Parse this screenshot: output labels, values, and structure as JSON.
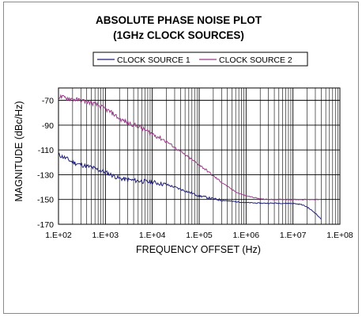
{
  "chart_data": {
    "type": "line",
    "title": "ABSOLUTE PHASE NOISE PLOT",
    "subtitle": "(1GHz CLOCK SOURCES)",
    "xlabel": "FREQUENCY OFFSET (Hz)",
    "ylabel": "MAGNITUDE (dBc/Hz)",
    "x_scale": "log",
    "xlim": [
      100,
      100000000
    ],
    "ylim": [
      -170,
      -60
    ],
    "x_ticks": [
      "1.E+02",
      "1.E+03",
      "1.E+04",
      "1.E+05",
      "1.E+06",
      "1.E+07",
      "1.E+08"
    ],
    "y_ticks": [
      "-70",
      "-90",
      "-110",
      "-130",
      "-150",
      "-170"
    ],
    "y_tick_values": [
      -70,
      -90,
      -110,
      -130,
      -150,
      -170
    ],
    "grid": true,
    "legend_position": "top",
    "series": [
      {
        "name": "CLOCK SOURCE 1",
        "color": "#1f1f7a",
        "x": [
          100,
          150,
          200,
          300,
          500,
          700,
          1000,
          1500,
          2000,
          3000,
          5000,
          7000,
          10000,
          20000,
          30000,
          50000,
          100000,
          200000,
          300000,
          500000,
          1000000,
          2000000,
          3000000,
          5000000,
          10000000,
          15000000,
          20000000,
          30000000,
          40000000
        ],
        "y": [
          -114,
          -117,
          -120,
          -122,
          -124,
          -126,
          -128,
          -131,
          -133,
          -134,
          -135,
          -135.5,
          -136,
          -138,
          -140,
          -143,
          -147,
          -149.5,
          -150.5,
          -151.5,
          -152.5,
          -153,
          -153,
          -153,
          -153.2,
          -154,
          -156,
          -161,
          -166
        ]
      },
      {
        "name": "CLOCK SOURCE 2",
        "color": "#9b3a8a",
        "x": [
          100,
          150,
          200,
          300,
          500,
          700,
          1000,
          1500,
          2000,
          3000,
          5000,
          7000,
          10000,
          20000,
          30000,
          50000,
          100000,
          150000,
          200000,
          300000,
          500000,
          700000,
          1000000,
          2000000,
          3000000,
          5000000,
          10000000,
          20000000,
          30000000,
          40000000
        ],
        "y": [
          -67,
          -68,
          -69,
          -70,
          -72,
          -74,
          -77,
          -81,
          -85,
          -88,
          -91,
          -94,
          -97,
          -103,
          -108,
          -114,
          -122,
          -127,
          -131,
          -136,
          -142,
          -145,
          -147,
          -149.5,
          -150,
          -150,
          -150,
          -150,
          -150,
          -150
        ]
      }
    ]
  }
}
